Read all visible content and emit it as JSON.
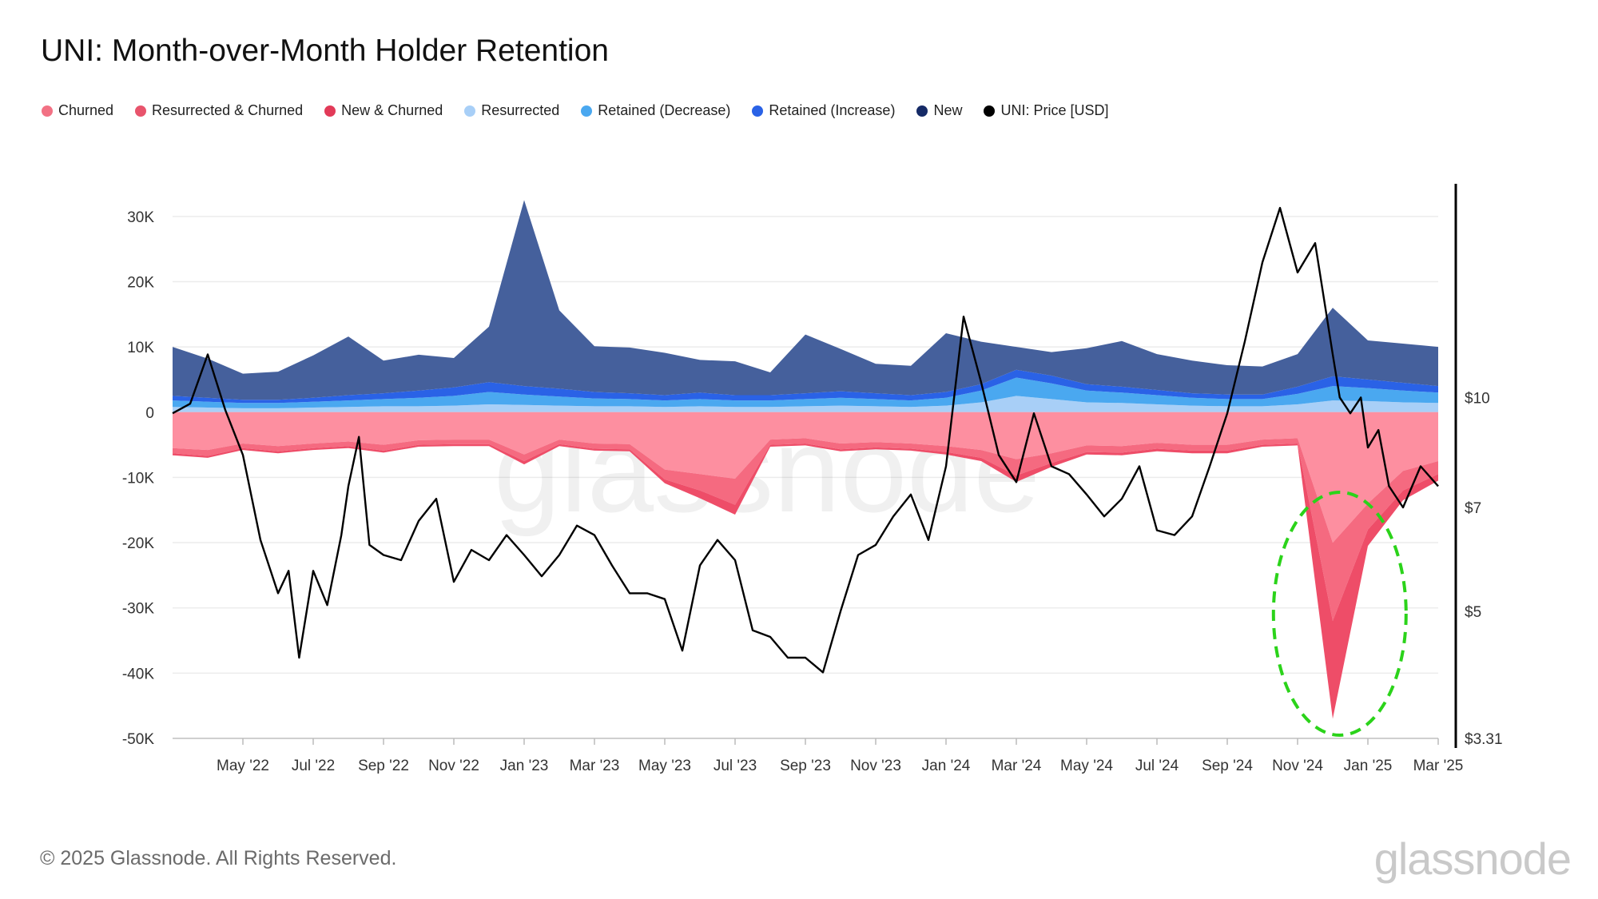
{
  "chart_data": {
    "type": "area",
    "title": "UNI: Month-over-Month Holder Retention",
    "legend": [
      {
        "name": "Churned",
        "color": "#f27184"
      },
      {
        "name": "Resurrected & Churned",
        "color": "#e8546c"
      },
      {
        "name": "New & Churned",
        "color": "#e23a58"
      },
      {
        "name": "Resurrected",
        "color": "#a8cff7"
      },
      {
        "name": "Retained (Decrease)",
        "color": "#4aa8f0"
      },
      {
        "name": "Retained (Increase)",
        "color": "#2a62e6"
      },
      {
        "name": "New",
        "color": "#152a66"
      },
      {
        "name": "UNI: Price [USD]",
        "color": "#000000"
      }
    ],
    "x_labels": [
      "May '22",
      "Jul '22",
      "Sep '22",
      "Nov '22",
      "Jan '23",
      "Mar '23",
      "May '23",
      "Jul '23",
      "Sep '23",
      "Nov '23",
      "Jan '24",
      "Mar '24",
      "May '24",
      "Jul '24",
      "Sep '24",
      "Nov '24",
      "Jan '25",
      "Mar '25"
    ],
    "x_range": [
      0,
      36
    ],
    "ylim_left": [
      -50000,
      35000
    ],
    "y_ticks_left": [
      30000,
      20000,
      10000,
      0,
      -10000,
      -20000,
      -30000,
      -40000,
      -50000
    ],
    "y_tick_labels_left": [
      "30K",
      "20K",
      "10K",
      "0",
      "-10K",
      "-20K",
      "-30K",
      "-40K",
      "-50K"
    ],
    "ylim_right": [
      3.31,
      20
    ],
    "y_scale_right": "log",
    "y_ticks_right": [
      10,
      7,
      5,
      3.31
    ],
    "y_tick_labels_right": [
      "$10",
      "$7",
      "$5",
      "$3.31"
    ],
    "positive_stack": {
      "months": [
        0,
        1,
        2,
        3,
        4,
        5,
        6,
        7,
        8,
        9,
        10,
        11,
        12,
        13,
        14,
        15,
        16,
        17,
        18,
        19,
        20,
        21,
        22,
        23,
        24,
        25,
        26,
        27,
        28,
        29,
        30,
        31,
        32,
        33,
        34,
        35,
        36
      ],
      "resurrected": [
        800,
        700,
        600,
        600,
        700,
        800,
        900,
        900,
        1000,
        1200,
        1100,
        1000,
        900,
        900,
        800,
        900,
        800,
        800,
        900,
        1000,
        900,
        800,
        1000,
        1500,
        2500,
        2000,
        1500,
        1400,
        1200,
        1000,
        900,
        900,
        1200,
        1800,
        1700,
        1500,
        1400
      ],
      "retained_decrease": [
        1000,
        900,
        800,
        800,
        900,
        1000,
        1100,
        1300,
        1500,
        1900,
        1600,
        1400,
        1200,
        1100,
        1000,
        1100,
        1000,
        1000,
        1100,
        1200,
        1100,
        1000,
        1200,
        1800,
        2800,
        2400,
        1800,
        1600,
        1400,
        1200,
        1100,
        1100,
        1600,
        2200,
        2000,
        1800,
        1600
      ],
      "retained_increase": [
        700,
        600,
        500,
        500,
        600,
        800,
        900,
        1100,
        1300,
        1500,
        1300,
        1200,
        1000,
        900,
        800,
        1000,
        800,
        800,
        900,
        1000,
        900,
        800,
        900,
        1000,
        1200,
        1200,
        1000,
        900,
        800,
        700,
        700,
        700,
        1100,
        1500,
        1300,
        1200,
        1000
      ],
      "new": [
        7500,
        6000,
        4000,
        4300,
        6500,
        9000,
        5000,
        5500,
        4500,
        8500,
        28500,
        12000,
        7000,
        7000,
        6500,
        5000,
        5200,
        3500,
        9000,
        6500,
        4500,
        4500,
        9000,
        6500,
        3500,
        3600,
        5500,
        7000,
        5500,
        5000,
        4500,
        4300,
        5000,
        10500,
        6000,
        6000,
        6000
      ]
    },
    "negative_stack": {
      "months": [
        0,
        1,
        2,
        3,
        4,
        5,
        6,
        7,
        8,
        9,
        10,
        11,
        12,
        13,
        14,
        15,
        16,
        17,
        18,
        19,
        20,
        21,
        22,
        23,
        24,
        25,
        26,
        27,
        28,
        29,
        30,
        31,
        32,
        33,
        34,
        35,
        36
      ],
      "churned": [
        -5500,
        -5800,
        -4800,
        -5200,
        -4800,
        -4500,
        -5000,
        -4300,
        -4200,
        -4200,
        -6500,
        -4200,
        -4800,
        -4900,
        -8800,
        -9500,
        -10200,
        -4200,
        -4000,
        -4800,
        -4600,
        -4800,
        -5200,
        -5800,
        -7200,
        -6300,
        -5100,
        -5200,
        -4700,
        -5000,
        -5000,
        -4200,
        -4000,
        -20000,
        -14000,
        -9000,
        -7500
      ],
      "resurrected_churned": [
        -800,
        -900,
        -700,
        -800,
        -700,
        -700,
        -900,
        -700,
        -700,
        -700,
        -1000,
        -700,
        -800,
        -800,
        -1500,
        -2500,
        -4000,
        -800,
        -800,
        -900,
        -800,
        -800,
        -900,
        -1200,
        -2500,
        -1500,
        -1000,
        -1000,
        -900,
        -900,
        -900,
        -800,
        -800,
        -12000,
        -4000,
        -3000,
        -2000
      ],
      "new_churned": [
        -300,
        -300,
        -300,
        -300,
        -300,
        -300,
        -300,
        -300,
        -300,
        -300,
        -500,
        -300,
        -300,
        -300,
        -600,
        -1200,
        -1500,
        -300,
        -300,
        -300,
        -300,
        -300,
        -400,
        -500,
        -1000,
        -600,
        -400,
        -400,
        -400,
        -400,
        -400,
        -300,
        -300,
        -15000,
        -2500,
        -1500,
        -1000
      ]
    },
    "price_usd": {
      "months": [
        0,
        0.5,
        1,
        1.5,
        2,
        2.5,
        3,
        3.3,
        3.6,
        4,
        4.4,
        4.8,
        5,
        5.3,
        5.6,
        6,
        6.5,
        7,
        7.5,
        8,
        8.5,
        9,
        9.5,
        10,
        10.5,
        11,
        11.5,
        12,
        12.5,
        13,
        13.5,
        14,
        14.5,
        15,
        15.5,
        16,
        16.5,
        17,
        17.5,
        18,
        18.5,
        19,
        19.5,
        20,
        20.5,
        21,
        21.5,
        22,
        22.5,
        23,
        23.5,
        24,
        24.5,
        25,
        25.5,
        26,
        26.5,
        27,
        27.5,
        28,
        28.5,
        29,
        29.5,
        30,
        30.5,
        31,
        31.5,
        32,
        32.5,
        33,
        33.2,
        33.5,
        33.8,
        34,
        34.3,
        34.6,
        35,
        35.5,
        36
      ],
      "values": [
        9.5,
        9.8,
        11.5,
        9.6,
        8.3,
        6.3,
        5.3,
        5.7,
        4.3,
        5.7,
        5.1,
        6.4,
        7.5,
        8.8,
        6.2,
        6.0,
        5.9,
        6.7,
        7.2,
        5.5,
        6.1,
        5.9,
        6.4,
        6.0,
        5.6,
        6.0,
        6.6,
        6.4,
        5.8,
        5.3,
        5.3,
        5.2,
        4.4,
        5.8,
        6.3,
        5.9,
        4.7,
        4.6,
        4.3,
        4.3,
        4.1,
        5.0,
        6.0,
        6.2,
        6.8,
        7.3,
        6.3,
        8.0,
        13.0,
        10.5,
        8.3,
        7.6,
        9.5,
        8.0,
        7.8,
        7.3,
        6.8,
        7.2,
        8.0,
        6.5,
        6.4,
        6.8,
        8.0,
        9.5,
        12.0,
        15.5,
        18.5,
        15.0,
        16.5,
        11.5,
        10.0,
        9.5,
        10.0,
        8.5,
        9.0,
        7.5,
        7.0,
        8.0,
        7.5
      ]
    },
    "annotation": "green dashed ellipse highlighting churn spike around Dec 2024"
  },
  "footer": {
    "copyright": "© 2025 Glassnode. All Rights Reserved.",
    "brand": "glassnode"
  },
  "watermark": "glassnode"
}
